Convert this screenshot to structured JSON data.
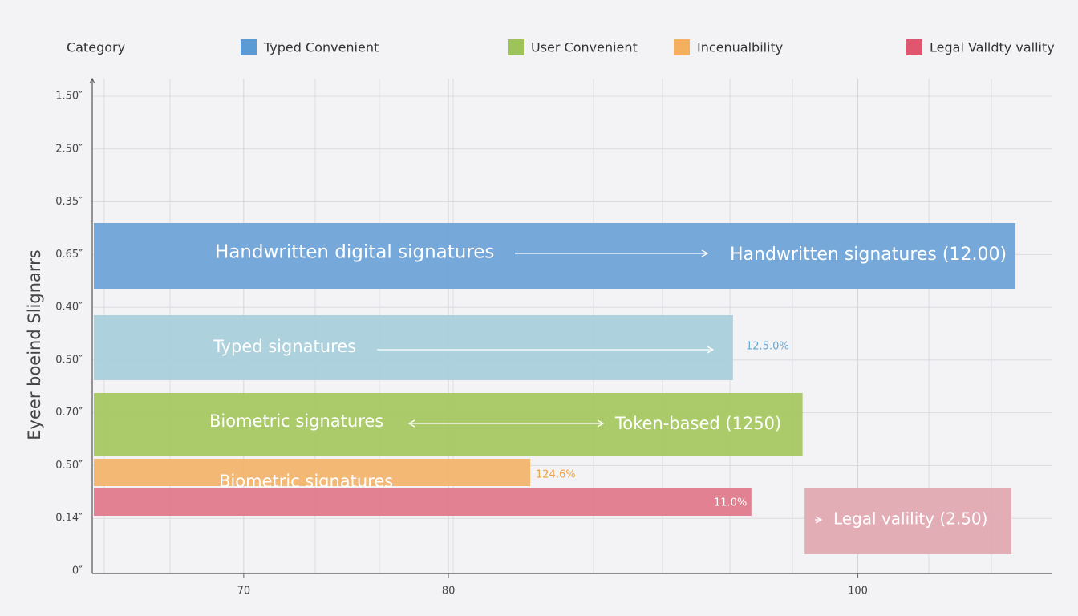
{
  "chart_data": {
    "type": "bar",
    "orientation": "horizontal",
    "legend_title": "Category",
    "legend": [
      {
        "name": "Typed Convenient",
        "color": "#5b9bd5"
      },
      {
        "name": "User Convenient",
        "color": "#9dc35a"
      },
      {
        "name": "Incenualbility",
        "color": "#f5b05e"
      },
      {
        "name": "Legal Valldty vallity",
        "color": "#e0566f"
      }
    ],
    "y_title": "Eyeer boeind Slignarrs",
    "y_labels": [
      "1.50″",
      "2.50″",
      "0.35″",
      "0.65″",
      "0.40″",
      "0.50″",
      "0.70″",
      "0.50″",
      "0.14″",
      "0″"
    ],
    "xlim": [
      62.6,
      109.5
    ],
    "xticks": [
      70,
      80,
      100
    ],
    "grid": true,
    "bars": [
      {
        "value": 107.7,
        "color": "#6fa4d8",
        "labels": [
          "Handwritten digital signatures",
          "Handwritten signatures (12.00)"
        ]
      },
      {
        "value": 93.9,
        "color": "#a9cfdb",
        "labels": [
          "Typed signatures",
          "12.5.0%"
        ]
      },
      {
        "value": 97.3,
        "color": "#a6c862",
        "labels": [
          "Biometric signatures",
          "Token-based (1250)"
        ]
      },
      {
        "value": 84.0,
        "color": "#f3b46e",
        "labels": [
          "Biometric signatures",
          "124.6%"
        ]
      },
      {
        "value": 94.8,
        "color": "#e07a8b",
        "labels": [
          "11.0%"
        ]
      },
      {
        "start": 97.4,
        "value": 107.5,
        "color": "#e2a9b2",
        "labels": [
          "Legal valility (2.50)"
        ]
      }
    ]
  }
}
